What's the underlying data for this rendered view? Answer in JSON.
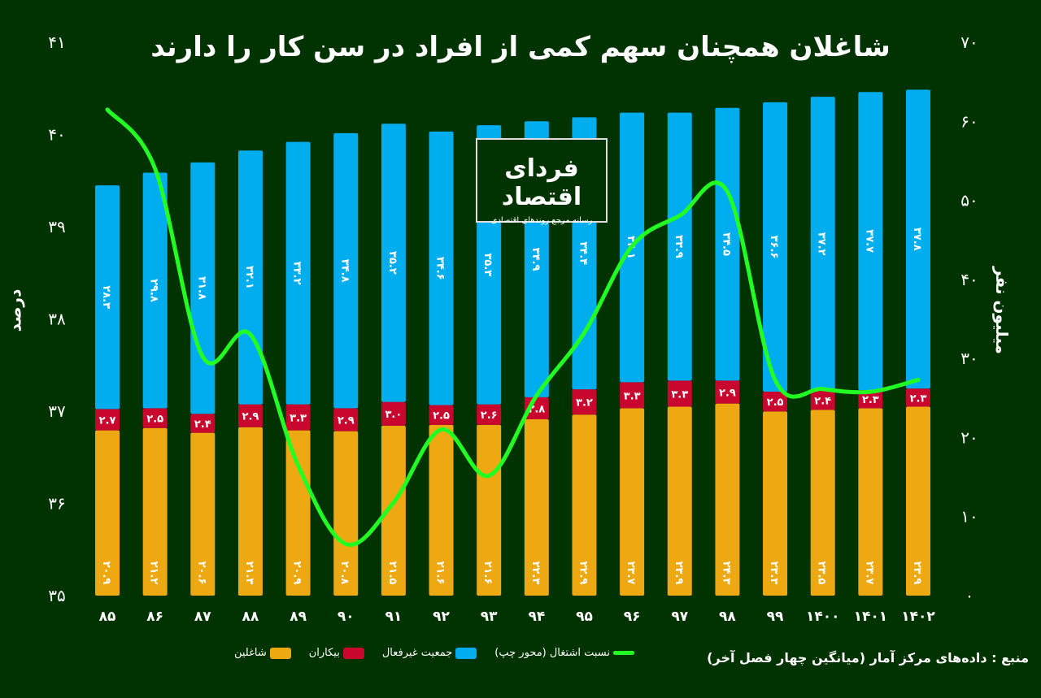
{
  "title": "شاغلان همچنان سهم کمی از افراد در سن کار را دارند",
  "logo": {
    "name": "فردای اقتصاد",
    "tagline": "رسانه مرجع روندهای اقتصادی"
  },
  "source": "منبع : داده‌های مرکز آمار (میانگین چهار فصل آخر)",
  "colors": {
    "background": "#003300",
    "employed": "#EDA812",
    "unemployed": "#C8062E",
    "inactive": "#00AEEF",
    "ratio_line": "#22FF22"
  },
  "chart_data": {
    "type": "bar",
    "stacked": true,
    "title": "شاغلان همچنان سهم کمی از افراد در سن کار را دارند",
    "categories": [
      "۸۵",
      "۸۶",
      "۸۷",
      "۸۸",
      "۸۹",
      "۹۰",
      "۹۱",
      "۹۲",
      "۹۳",
      "۹۴",
      "۹۵",
      "۹۶",
      "۹۷",
      "۹۸",
      "۹۹",
      "۱۴۰۰",
      "۱۴۰۱",
      "۱۴۰۲"
    ],
    "ylabel_left": "درصد",
    "ylabel_right": "میلیون نفر",
    "ylim_left": [
      35,
      41
    ],
    "ylim_right": [
      0,
      70
    ],
    "yticks_left": [
      "۳۵",
      "۳۶",
      "۳۷",
      "۳۸",
      "۳۹",
      "۴۰",
      "۴۱"
    ],
    "yticks_right": [
      "۰",
      "۱۰",
      "۲۰",
      "۳۰",
      "۴۰",
      "۵۰",
      "۶۰",
      "۷۰"
    ],
    "grid": false,
    "legend_position": "bottom",
    "series": [
      {
        "name": "شاغلین",
        "axis": "right",
        "type": "bar",
        "values": [
          20.9,
          21.2,
          20.6,
          21.3,
          20.9,
          20.8,
          21.5,
          21.6,
          21.6,
          22.3,
          22.9,
          23.7,
          23.9,
          24.3,
          23.3,
          23.5,
          23.7,
          23.9
        ]
      },
      {
        "name": "بیکاران",
        "axis": "right",
        "type": "bar",
        "values": [
          2.7,
          2.5,
          2.4,
          2.9,
          3.3,
          2.9,
          3.0,
          2.5,
          2.6,
          2.8,
          3.2,
          3.3,
          3.3,
          2.9,
          2.5,
          2.4,
          2.3,
          2.3
        ]
      },
      {
        "name": "جمعیت غیرفعال",
        "axis": "right",
        "type": "bar",
        "values": [
          28.3,
          29.8,
          31.8,
          32.1,
          33.2,
          34.8,
          35.2,
          34.6,
          35.3,
          34.9,
          34.4,
          34.1,
          33.9,
          34.5,
          36.6,
          37.2,
          37.7,
          37.8
        ]
      },
      {
        "name": "نسبت اشتغال (محور چپ)",
        "axis": "left",
        "type": "line",
        "values": [
          40.27,
          39.63,
          37.59,
          37.83,
          36.41,
          35.56,
          36.01,
          36.8,
          36.3,
          37.17,
          37.85,
          38.79,
          39.12,
          39.38,
          37.34,
          37.24,
          37.21,
          37.34
        ]
      }
    ]
  }
}
